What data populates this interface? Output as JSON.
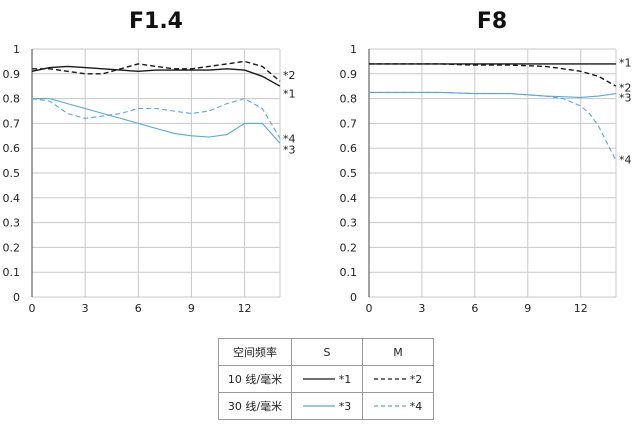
{
  "colors": {
    "black": "#1a1a1a",
    "blue": "#5aa8d8",
    "grid": "#c8c8c8"
  },
  "chart_data": [
    {
      "type": "line",
      "title": "F1.4",
      "xlim": [
        0,
        14
      ],
      "ylim": [
        0,
        1
      ],
      "xticks": [
        "0",
        "3",
        "6",
        "9",
        "12"
      ],
      "yticks": [
        "0",
        "0.1",
        "0.2",
        "0.3",
        "0.4",
        "0.5",
        "0.6",
        "0.7",
        "0.8",
        "0.9",
        "1"
      ],
      "grid": true,
      "series": [
        {
          "name": "*1",
          "color": "#1a1a1a",
          "dash": false,
          "x": [
            0,
            1,
            2,
            3,
            4,
            5,
            6,
            7,
            8,
            9,
            10,
            11,
            12,
            13,
            14
          ],
          "y": [
            0.91,
            0.925,
            0.93,
            0.925,
            0.92,
            0.915,
            0.91,
            0.915,
            0.915,
            0.915,
            0.915,
            0.92,
            0.915,
            0.89,
            0.85
          ]
        },
        {
          "name": "*2",
          "color": "#1a1a1a",
          "dash": true,
          "x": [
            0,
            1,
            2,
            3,
            4,
            5,
            6,
            7,
            8,
            9,
            10,
            11,
            12,
            13,
            14
          ],
          "y": [
            0.92,
            0.92,
            0.91,
            0.9,
            0.9,
            0.92,
            0.94,
            0.93,
            0.92,
            0.92,
            0.93,
            0.94,
            0.95,
            0.93,
            0.87
          ]
        },
        {
          "name": "*3",
          "color": "#5aa8d8",
          "dash": false,
          "x": [
            0,
            1,
            2,
            3,
            4,
            5,
            6,
            7,
            8,
            9,
            10,
            11,
            12,
            13,
            14
          ],
          "y": [
            0.8,
            0.8,
            0.78,
            0.76,
            0.74,
            0.72,
            0.7,
            0.68,
            0.66,
            0.65,
            0.645,
            0.655,
            0.7,
            0.7,
            0.62
          ]
        },
        {
          "name": "*4",
          "color": "#5aa8d8",
          "dash": true,
          "x": [
            0,
            1,
            2,
            3,
            4,
            5,
            6,
            7,
            8,
            9,
            10,
            11,
            12,
            13,
            14
          ],
          "y": [
            0.8,
            0.79,
            0.74,
            0.72,
            0.73,
            0.74,
            0.76,
            0.76,
            0.75,
            0.74,
            0.75,
            0.78,
            0.8,
            0.76,
            0.64
          ]
        }
      ],
      "end_labels": [
        {
          "text": "*2",
          "y": 0.895
        },
        {
          "text": "*1",
          "y": 0.82
        },
        {
          "text": "*4",
          "y": 0.64
        },
        {
          "text": "*3",
          "y": 0.595
        }
      ]
    },
    {
      "type": "line",
      "title": "F8",
      "xlim": [
        0,
        14
      ],
      "ylim": [
        0,
        1
      ],
      "xticks": [
        "0",
        "3",
        "6",
        "9",
        "12"
      ],
      "yticks": [
        "0",
        "0.1",
        "0.2",
        "0.3",
        "0.4",
        "0.5",
        "0.6",
        "0.7",
        "0.8",
        "0.9",
        "1"
      ],
      "grid": true,
      "series": [
        {
          "name": "*1",
          "color": "#1a1a1a",
          "dash": false,
          "x": [
            0,
            2,
            4,
            6,
            8,
            10,
            12,
            14
          ],
          "y": [
            0.94,
            0.94,
            0.94,
            0.94,
            0.94,
            0.94,
            0.94,
            0.94
          ]
        },
        {
          "name": "*2",
          "color": "#1a1a1a",
          "dash": true,
          "x": [
            0,
            2,
            4,
            6,
            8,
            10,
            11,
            12,
            13,
            14
          ],
          "y": [
            0.94,
            0.94,
            0.94,
            0.935,
            0.935,
            0.93,
            0.92,
            0.91,
            0.89,
            0.85
          ]
        },
        {
          "name": "*3",
          "color": "#5aa8d8",
          "dash": false,
          "x": [
            0,
            2,
            4,
            6,
            8,
            10,
            12,
            13,
            14
          ],
          "y": [
            0.825,
            0.825,
            0.825,
            0.82,
            0.82,
            0.81,
            0.805,
            0.81,
            0.82
          ]
        },
        {
          "name": "*4",
          "color": "#5aa8d8",
          "dash": true,
          "x": [
            0,
            2,
            4,
            6,
            8,
            10,
            11,
            12,
            12.5,
            13,
            13.5,
            14
          ],
          "y": [
            0.825,
            0.825,
            0.825,
            0.82,
            0.82,
            0.81,
            0.8,
            0.77,
            0.74,
            0.69,
            0.62,
            0.55
          ]
        }
      ],
      "end_labels": [
        {
          "text": "*1",
          "y": 0.945
        },
        {
          "text": "*2",
          "y": 0.845
        },
        {
          "text": "*3",
          "y": 0.805
        },
        {
          "text": "*4",
          "y": 0.555
        }
      ]
    }
  ],
  "legend": {
    "header": [
      "空间频率",
      "S",
      "M"
    ],
    "rows": [
      {
        "label": "10 线/毫米",
        "s": "*1",
        "m": "*2",
        "color": "#1a1a1a"
      },
      {
        "label": "30 线/毫米",
        "s": "*3",
        "m": "*4",
        "color": "#5aa8d8"
      }
    ]
  }
}
